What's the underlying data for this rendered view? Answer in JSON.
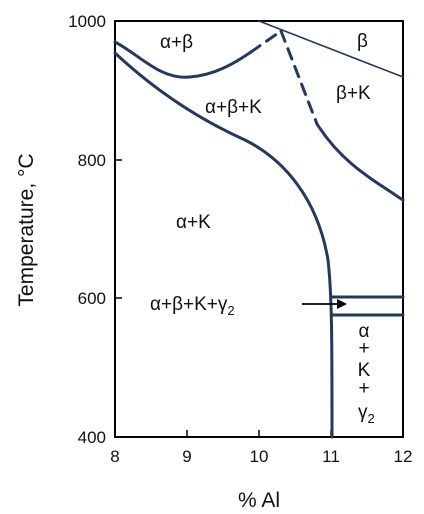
{
  "diagram": {
    "y_axis_label": "Temperature, °C",
    "x_axis_label": "% Al",
    "x_ticks": [
      "8",
      "9",
      "10",
      "11",
      "12"
    ],
    "y_ticks": [
      "400",
      "600",
      "800",
      "1000"
    ],
    "regions": {
      "alpha_beta": "α+β",
      "beta": "β",
      "alpha_beta_k": "α+β+K",
      "beta_k": "β+K",
      "alpha_k": "α+K",
      "eutectoid_label_main": "α+β+K+γ",
      "eutectoid_label_sub": "2",
      "low_right_alpha": "α",
      "low_right_plus1": "+",
      "low_right_k": "K",
      "low_right_plus2": "+",
      "low_right_gamma": "γ",
      "low_right_gamma_sub": "2"
    },
    "colors": {
      "phase_line": "#23395d",
      "frame": "#000000",
      "text": "#111111"
    }
  }
}
